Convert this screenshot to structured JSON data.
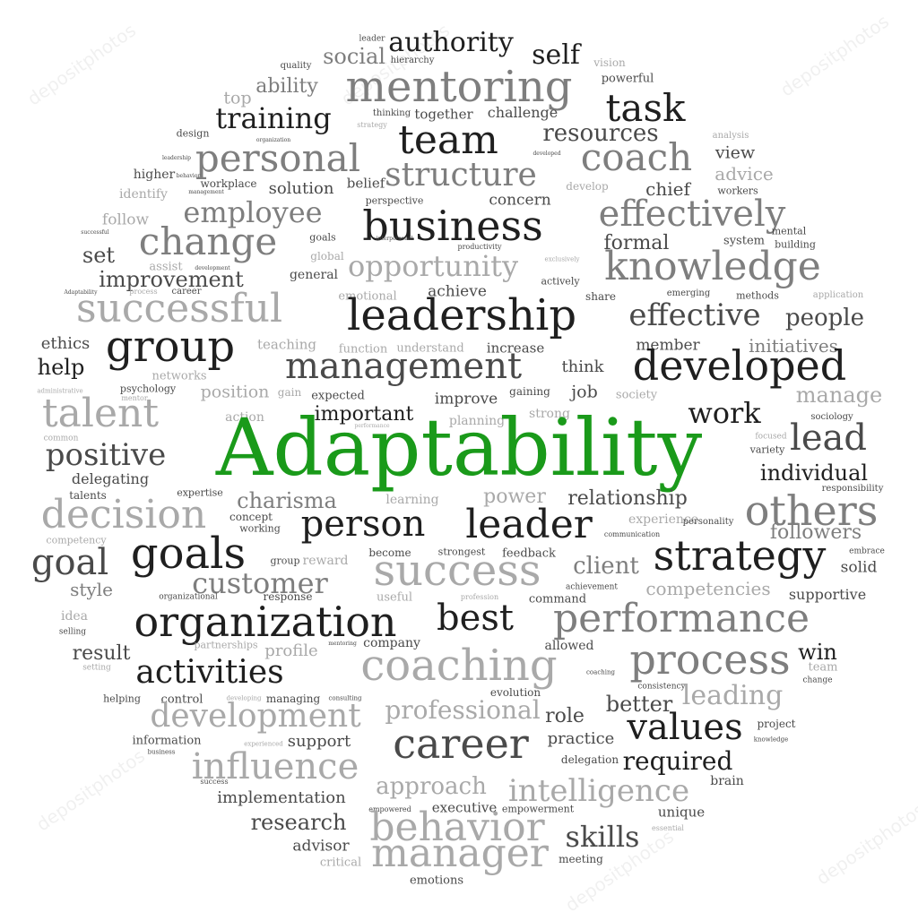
{
  "title_word": "Adaptability",
  "watermark": "depositphotos",
  "colors": {
    "dark": "#1f1f1f",
    "mid": "#4a4a4a",
    "gray": "#7e7e7e",
    "light": "#a9a9a9",
    "accent": "#1a9a1a"
  },
  "words": [
    [
      "leader",
      415,
      44,
      9,
      "d"
    ],
    [
      "authority",
      503,
      48,
      30,
      "k"
    ],
    [
      "self",
      620,
      62,
      30,
      "k"
    ],
    [
      "vision",
      680,
      70,
      12,
      "l"
    ],
    [
      "quality",
      330,
      74,
      10,
      "d"
    ],
    [
      "social",
      395,
      63,
      24,
      "g"
    ],
    [
      "hierarchy",
      460,
      68,
      10,
      "d"
    ],
    [
      "powerful",
      700,
      88,
      13,
      "d"
    ],
    [
      "ability",
      320,
      97,
      22,
      "g"
    ],
    [
      "mentoring",
      512,
      97,
      48,
      "g"
    ],
    [
      "top",
      265,
      110,
      19,
      "l"
    ],
    [
      "task",
      720,
      121,
      42,
      "k"
    ],
    [
      "training",
      305,
      132,
      32,
      "k"
    ],
    [
      "thinking",
      437,
      127,
      10,
      "d"
    ],
    [
      "together",
      495,
      128,
      15,
      "d"
    ],
    [
      "challenge",
      583,
      126,
      16,
      "d"
    ],
    [
      "strategy",
      415,
      140,
      8,
      "l"
    ],
    [
      "design",
      215,
      149,
      11,
      "d"
    ],
    [
      "team",
      500,
      157,
      44,
      "k"
    ],
    [
      "resources",
      670,
      149,
      26,
      "d"
    ],
    [
      "analysis",
      815,
      152,
      10,
      "l"
    ],
    [
      "organization",
      305,
      157,
      6,
      "d"
    ],
    [
      "leadership",
      197,
      177,
      6,
      "d"
    ],
    [
      "personal",
      310,
      177,
      42,
      "g"
    ],
    [
      "coach",
      710,
      176,
      42,
      "g"
    ],
    [
      "view",
      820,
      171,
      19,
      "d"
    ],
    [
      "developed",
      610,
      172,
      6,
      "d"
    ],
    [
      "higher",
      172,
      195,
      14,
      "d"
    ],
    [
      "behavior",
      210,
      197,
      6,
      "d"
    ],
    [
      "structure",
      514,
      196,
      36,
      "g"
    ],
    [
      "advice",
      830,
      194,
      20,
      "l"
    ],
    [
      "workplace",
      255,
      205,
      12,
      "d"
    ],
    [
      "management",
      230,
      215,
      6,
      "d"
    ],
    [
      "belief",
      408,
      205,
      15,
      "d"
    ],
    [
      "develop",
      655,
      208,
      12,
      "l"
    ],
    [
      "chief",
      745,
      211,
      20,
      "d"
    ],
    [
      "workers",
      823,
      213,
      11,
      "d"
    ],
    [
      "identify",
      160,
      217,
      14,
      "l"
    ],
    [
      "solution",
      336,
      211,
      18,
      "d"
    ],
    [
      "perspective",
      440,
      224,
      11,
      "d"
    ],
    [
      "concern",
      580,
      224,
      17,
      "d"
    ],
    [
      "employee",
      282,
      237,
      32,
      "g"
    ],
    [
      "effectively",
      772,
      239,
      40,
      "g"
    ],
    [
      "business",
      505,
      252,
      46,
      "k"
    ],
    [
      "follow",
      140,
      246,
      17,
      "l"
    ],
    [
      "successful",
      106,
      260,
      6,
      "d"
    ],
    [
      "mental",
      880,
      258,
      11,
      "d"
    ],
    [
      "change",
      232,
      270,
      42,
      "g"
    ],
    [
      "goals",
      360,
      265,
      11,
      "d"
    ],
    [
      "interpersonal",
      440,
      267,
      6,
      "d"
    ],
    [
      "system",
      830,
      269,
      13,
      "d"
    ],
    [
      "building",
      887,
      273,
      11,
      "d"
    ],
    [
      "formal",
      710,
      272,
      22,
      "d"
    ],
    [
      "set",
      110,
      285,
      24,
      "d"
    ],
    [
      "global",
      365,
      286,
      12,
      "l"
    ],
    [
      "productivity",
      535,
      276,
      8,
      "d"
    ],
    [
      "exclusively",
      627,
      290,
      7,
      "l"
    ],
    [
      "opportunity",
      483,
      297,
      32,
      "l"
    ],
    [
      "knowledge",
      795,
      298,
      44,
      "g"
    ],
    [
      "assist",
      185,
      298,
      13,
      "l"
    ],
    [
      "development",
      237,
      300,
      6,
      "d"
    ],
    [
      "general",
      350,
      307,
      14,
      "d"
    ],
    [
      "improvement",
      191,
      312,
      24,
      "d"
    ],
    [
      "actively",
      625,
      314,
      11,
      "d"
    ],
    [
      "Adaptability",
      90,
      327,
      6,
      "d"
    ],
    [
      "process",
      160,
      326,
      8,
      "l"
    ],
    [
      "career",
      208,
      326,
      10,
      "d"
    ],
    [
      "achieve",
      510,
      326,
      17,
      "d"
    ],
    [
      "emerging",
      768,
      328,
      10,
      "d"
    ],
    [
      "methods",
      845,
      330,
      11,
      "d"
    ],
    [
      "application",
      935,
      330,
      10,
      "l"
    ],
    [
      "emotional",
      410,
      331,
      13,
      "l"
    ],
    [
      "share",
      670,
      331,
      12,
      "d"
    ],
    [
      "successful",
      200,
      345,
      44,
      "l"
    ],
    [
      "leadership",
      515,
      352,
      48,
      "k"
    ],
    [
      "effective",
      775,
      352,
      34,
      "d"
    ],
    [
      "people",
      920,
      355,
      26,
      "d"
    ],
    [
      "ethics",
      73,
      384,
      18,
      "d"
    ],
    [
      "group",
      190,
      387,
      48,
      "k"
    ],
    [
      "teaching",
      320,
      385,
      15,
      "l"
    ],
    [
      "function",
      405,
      390,
      13,
      "l"
    ],
    [
      "understand",
      480,
      389,
      13,
      "l"
    ],
    [
      "increase",
      575,
      389,
      15,
      "d"
    ],
    [
      "member",
      745,
      386,
      17,
      "d"
    ],
    [
      "initiatives",
      885,
      386,
      20,
      "g"
    ],
    [
      "management",
      450,
      409,
      40,
      "d"
    ],
    [
      "developed",
      825,
      408,
      46,
      "k"
    ],
    [
      "help",
      68,
      410,
      24,
      "k"
    ],
    [
      "think",
      650,
      410,
      18,
      "d"
    ],
    [
      "networks",
      200,
      420,
      13,
      "l"
    ],
    [
      "psychology",
      165,
      434,
      11,
      "d"
    ],
    [
      "mentor",
      150,
      445,
      8,
      "l"
    ],
    [
      "position",
      262,
      438,
      19,
      "l"
    ],
    [
      "gain",
      323,
      438,
      12,
      "l"
    ],
    [
      "expected",
      377,
      442,
      13,
      "d"
    ],
    [
      "improve",
      520,
      446,
      17,
      "d"
    ],
    [
      "gaining",
      591,
      437,
      12,
      "d"
    ],
    [
      "job",
      652,
      438,
      19,
      "d"
    ],
    [
      "society",
      710,
      441,
      13,
      "l"
    ],
    [
      "manage",
      936,
      441,
      24,
      "l"
    ],
    [
      "administrative",
      67,
      437,
      7,
      "l"
    ],
    [
      "talent",
      112,
      462,
      44,
      "l"
    ],
    [
      "action",
      273,
      466,
      14,
      "l"
    ],
    [
      "important",
      406,
      463,
      22,
      "k"
    ],
    [
      "performance",
      415,
      476,
      6,
      "l"
    ],
    [
      "planning",
      532,
      470,
      14,
      "l"
    ],
    [
      "strong",
      613,
      462,
      14,
      "l"
    ],
    [
      "work",
      808,
      461,
      32,
      "k"
    ],
    [
      "sociology",
      928,
      466,
      10,
      "d"
    ],
    [
      "lead",
      924,
      489,
      40,
      "d"
    ],
    [
      "common",
      68,
      490,
      9,
      "l"
    ],
    [
      "positive",
      118,
      508,
      34,
      "d"
    ],
    [
      "focused",
      860,
      488,
      9,
      "l"
    ],
    [
      "variety",
      856,
      502,
      11,
      "d"
    ],
    [
      "Adaptability",
      512,
      500,
      88,
      "gr"
    ],
    [
      "delegating",
      123,
      535,
      16,
      "d"
    ],
    [
      "individual",
      908,
      528,
      24,
      "k"
    ],
    [
      "responsibility",
      951,
      546,
      10,
      "d"
    ],
    [
      "talents",
      98,
      553,
      12,
      "d"
    ],
    [
      "expertise",
      223,
      550,
      11,
      "d"
    ],
    [
      "charisma",
      320,
      559,
      24,
      "g"
    ],
    [
      "learning",
      460,
      558,
      14,
      "l"
    ],
    [
      "power",
      574,
      555,
      22,
      "l"
    ],
    [
      "relationship",
      700,
      557,
      22,
      "d"
    ],
    [
      "decision",
      138,
      575,
      44,
      "l"
    ],
    [
      "concept",
      280,
      577,
      12,
      "d"
    ],
    [
      "person",
      405,
      585,
      40,
      "k"
    ],
    [
      "leader",
      590,
      586,
      44,
      "k"
    ],
    [
      "experience",
      740,
      580,
      14,
      "l"
    ],
    [
      "personality",
      790,
      583,
      10,
      "d"
    ],
    [
      "others",
      905,
      570,
      46,
      "g"
    ],
    [
      "working",
      290,
      590,
      11,
      "d"
    ],
    [
      "communication",
      705,
      597,
      8,
      "d"
    ],
    [
      "followers",
      910,
      595,
      22,
      "g"
    ],
    [
      "competency",
      85,
      603,
      11,
      "l"
    ],
    [
      "goals",
      210,
      618,
      48,
      "k"
    ],
    [
      "become",
      435,
      617,
      12,
      "d"
    ],
    [
      "strongest",
      515,
      616,
      11,
      "d"
    ],
    [
      "feedback",
      590,
      618,
      13,
      "d"
    ],
    [
      "strategy",
      825,
      620,
      46,
      "k"
    ],
    [
      "embrace",
      967,
      616,
      9,
      "d"
    ],
    [
      "goal",
      78,
      628,
      40,
      "d"
    ],
    [
      "group",
      318,
      626,
      11,
      "d"
    ],
    [
      "reward",
      363,
      626,
      14,
      "l"
    ],
    [
      "success",
      510,
      637,
      48,
      "l"
    ],
    [
      "client",
      676,
      632,
      26,
      "g"
    ],
    [
      "solid",
      958,
      634,
      17,
      "d"
    ],
    [
      "customer",
      290,
      651,
      32,
      "g"
    ],
    [
      "achievement",
      660,
      656,
      9,
      "d"
    ],
    [
      "competencies",
      790,
      657,
      20,
      "l"
    ],
    [
      "style",
      102,
      658,
      20,
      "g"
    ],
    [
      "response",
      321,
      666,
      12,
      "d"
    ],
    [
      "useful",
      440,
      667,
      13,
      "l"
    ],
    [
      "profession",
      535,
      667,
      8,
      "l"
    ],
    [
      "command",
      622,
      669,
      13,
      "d"
    ],
    [
      "supportive",
      923,
      664,
      16,
      "d"
    ],
    [
      "organizational",
      210,
      667,
      9,
      "d"
    ],
    [
      "idea",
      83,
      688,
      14,
      "l"
    ],
    [
      "organization",
      296,
      694,
      46,
      "k"
    ],
    [
      "best",
      530,
      690,
      40,
      "k"
    ],
    [
      "performance",
      760,
      691,
      44,
      "g"
    ],
    [
      "selling",
      81,
      706,
      9,
      "d"
    ],
    [
      "partnerships",
      252,
      720,
      11,
      "l"
    ],
    [
      "profile",
      325,
      727,
      18,
      "l"
    ],
    [
      "mentoring",
      382,
      719,
      6,
      "d"
    ],
    [
      "company",
      437,
      718,
      14,
      "d"
    ],
    [
      "allowed",
      635,
      721,
      14,
      "d"
    ],
    [
      "result",
      113,
      730,
      22,
      "d"
    ],
    [
      "win",
      912,
      728,
      24,
      "k"
    ],
    [
      "coaching",
      512,
      743,
      48,
      "l"
    ],
    [
      "process",
      792,
      736,
      46,
      "g"
    ],
    [
      "activities",
      234,
      751,
      36,
      "k"
    ],
    [
      "setting",
      108,
      746,
      9,
      "l"
    ],
    [
      "team",
      918,
      745,
      13,
      "l"
    ],
    [
      "coaching",
      670,
      751,
      7,
      "d"
    ],
    [
      "consistency",
      738,
      767,
      9,
      "d"
    ],
    [
      "change",
      912,
      760,
      9,
      "d"
    ],
    [
      "leading",
      817,
      777,
      30,
      "l"
    ],
    [
      "helping",
      136,
      780,
      11,
      "d"
    ],
    [
      "control",
      203,
      781,
      13,
      "d"
    ],
    [
      "developing",
      272,
      780,
      7,
      "l"
    ],
    [
      "managing",
      327,
      780,
      12,
      "d"
    ],
    [
      "consulting",
      385,
      780,
      7,
      "d"
    ],
    [
      "evolution",
      575,
      773,
      12,
      "d"
    ],
    [
      "better",
      713,
      786,
      24,
      "d"
    ],
    [
      "development",
      285,
      800,
      36,
      "l"
    ],
    [
      "professional",
      516,
      793,
      28,
      "l"
    ],
    [
      "role",
      630,
      800,
      22,
      "d"
    ],
    [
      "values",
      764,
      812,
      40,
      "k"
    ],
    [
      "project",
      866,
      808,
      12,
      "d"
    ],
    [
      "information",
      186,
      827,
      13,
      "d"
    ],
    [
      "experienced",
      294,
      831,
      7,
      "l"
    ],
    [
      "support",
      356,
      828,
      18,
      "d"
    ],
    [
      "career",
      514,
      830,
      46,
      "d"
    ],
    [
      "practice",
      648,
      825,
      18,
      "d"
    ],
    [
      "knowledge",
      860,
      826,
      7,
      "d"
    ],
    [
      "business",
      180,
      840,
      7,
      "d"
    ],
    [
      "influence",
      307,
      856,
      40,
      "l"
    ],
    [
      "delegation",
      658,
      848,
      12,
      "d"
    ],
    [
      "required",
      756,
      850,
      28,
      "k"
    ],
    [
      "success",
      239,
      873,
      8,
      "d"
    ],
    [
      "approach",
      481,
      878,
      26,
      "l"
    ],
    [
      "intelligence",
      668,
      883,
      34,
      "l"
    ],
    [
      "brain",
      811,
      872,
      14,
      "d"
    ],
    [
      "implementation",
      314,
      891,
      18,
      "d"
    ],
    [
      "empowered",
      435,
      904,
      8,
      "d"
    ],
    [
      "executive",
      518,
      902,
      15,
      "d"
    ],
    [
      "empowerment",
      600,
      903,
      11,
      "d"
    ],
    [
      "unique",
      760,
      907,
      15,
      "d"
    ],
    [
      "research",
      333,
      918,
      24,
      "d"
    ],
    [
      "behavior",
      510,
      924,
      44,
      "l"
    ],
    [
      "skills",
      672,
      934,
      32,
      "d"
    ],
    [
      "essential",
      745,
      925,
      8,
      "l"
    ],
    [
      "advisor",
      358,
      945,
      17,
      "d"
    ],
    [
      "manager",
      513,
      953,
      44,
      "l"
    ],
    [
      "meeting",
      648,
      959,
      12,
      "d"
    ],
    [
      "critical",
      380,
      963,
      13,
      "l"
    ],
    [
      "emotions",
      487,
      983,
      13,
      "d"
    ]
  ]
}
